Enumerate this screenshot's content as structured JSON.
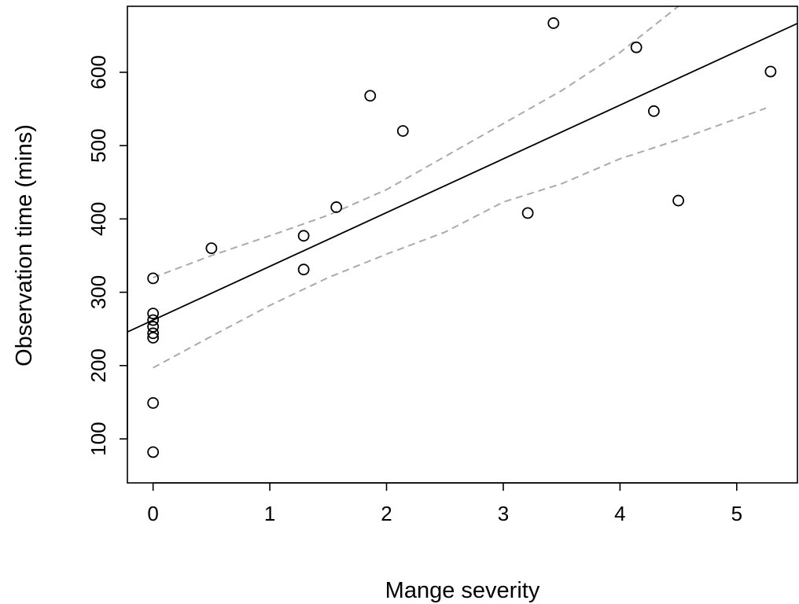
{
  "chart_data": {
    "type": "scatter",
    "title": "",
    "xlabel": "Mange severity",
    "ylabel": "Observation time (mins)",
    "xlim": [
      -0.22,
      5.52
    ],
    "ylim": [
      40,
      690
    ],
    "x_ticks": [
      0,
      1,
      2,
      3,
      4,
      5
    ],
    "y_ticks": [
      100,
      200,
      300,
      400,
      500,
      600
    ],
    "grid": false,
    "legend": "none",
    "points": [
      {
        "x": 0,
        "y": 82
      },
      {
        "x": 0,
        "y": 149
      },
      {
        "x": 0,
        "y": 238
      },
      {
        "x": 0,
        "y": 244
      },
      {
        "x": 0,
        "y": 253
      },
      {
        "x": 0,
        "y": 262
      },
      {
        "x": 0,
        "y": 271
      },
      {
        "x": 0,
        "y": 319
      },
      {
        "x": 0.5,
        "y": 360
      },
      {
        "x": 1.29,
        "y": 331
      },
      {
        "x": 1.29,
        "y": 377
      },
      {
        "x": 1.57,
        "y": 416
      },
      {
        "x": 1.86,
        "y": 568
      },
      {
        "x": 2.14,
        "y": 520
      },
      {
        "x": 3.21,
        "y": 408
      },
      {
        "x": 3.43,
        "y": 667
      },
      {
        "x": 4.14,
        "y": 634
      },
      {
        "x": 4.29,
        "y": 547
      },
      {
        "x": 4.5,
        "y": 425
      },
      {
        "x": 5.29,
        "y": 601
      }
    ],
    "fit_line": {
      "intercept": 262,
      "slope": 73.3,
      "color": "#000000"
    },
    "confidence_band": {
      "color": "#aaaaaa",
      "upper": [
        {
          "x": 0,
          "y": 320
        },
        {
          "x": 0.5,
          "y": 350
        },
        {
          "x": 1,
          "y": 377
        },
        {
          "x": 1.5,
          "y": 405
        },
        {
          "x": 2,
          "y": 440
        },
        {
          "x": 2.5,
          "y": 485
        },
        {
          "x": 3,
          "y": 530
        },
        {
          "x": 3.5,
          "y": 575
        },
        {
          "x": 4,
          "y": 627
        },
        {
          "x": 4.5,
          "y": 690
        }
      ],
      "lower": [
        {
          "x": 0,
          "y": 197
        },
        {
          "x": 0.5,
          "y": 240
        },
        {
          "x": 1,
          "y": 282
        },
        {
          "x": 1.5,
          "y": 320
        },
        {
          "x": 2,
          "y": 352
        },
        {
          "x": 2.5,
          "y": 382
        },
        {
          "x": 3,
          "y": 423
        },
        {
          "x": 3.5,
          "y": 448
        },
        {
          "x": 4,
          "y": 482
        },
        {
          "x": 4.5,
          "y": 508
        },
        {
          "x": 5.25,
          "y": 551
        }
      ]
    }
  }
}
